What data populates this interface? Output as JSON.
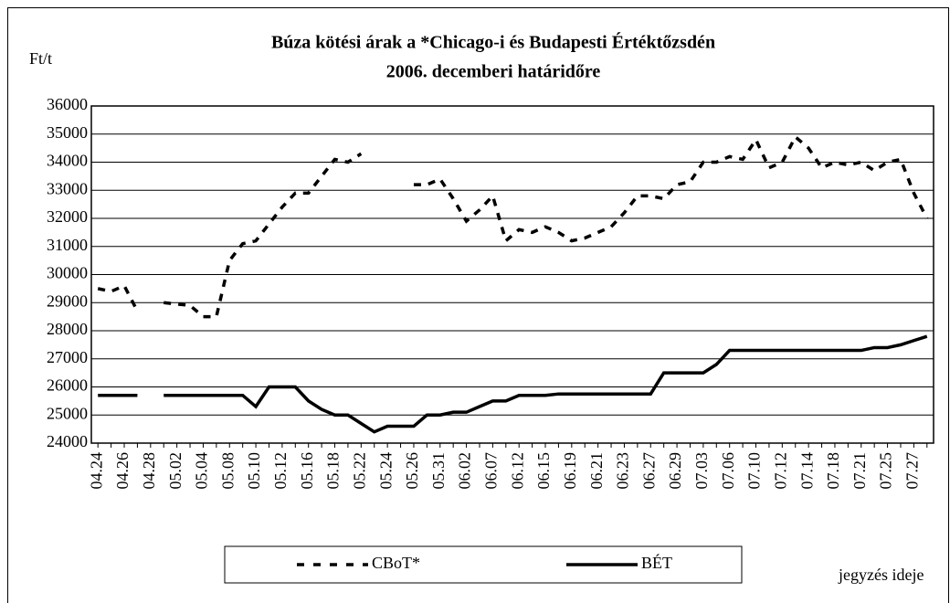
{
  "chart_data": {
    "type": "line",
    "title": "Búza kötési árak a  *Chicago-i és Budapesti Értéktőzsdén",
    "subtitle": "2006. decemberi határidőre",
    "y_label": "Ft/t",
    "x_label": "jegyzés ideje",
    "categories": [
      "04.24",
      null,
      "04.26",
      null,
      "04.28",
      null,
      "05.02",
      null,
      "05.04",
      null,
      "05.08",
      null,
      "05.10",
      null,
      "05.12",
      null,
      "05.16",
      null,
      "05.18",
      null,
      "05.22",
      null,
      "05.24",
      null,
      "05.26",
      null,
      "05.31",
      null,
      "06.02",
      null,
      "06.07",
      null,
      "06.12",
      null,
      "06.15",
      null,
      "06.19",
      null,
      "06.21",
      null,
      "06.23",
      null,
      "06.27",
      null,
      "06.29",
      null,
      "07.03",
      null,
      "07.06",
      null,
      "07.10",
      null,
      "07.12",
      null,
      "07.14",
      null,
      "07.18",
      null,
      "07.21",
      null,
      "07.25",
      null,
      "07.27",
      null
    ],
    "series": [
      {
        "name": "CBoT*",
        "color": "#000000",
        "dashed": true,
        "values": [
          29500,
          29400,
          29600,
          28700,
          null,
          29000,
          28950,
          28900,
          28500,
          28500,
          30500,
          31100,
          31200,
          31800,
          32400,
          32900,
          32900,
          33500,
          34100,
          34000,
          34300,
          null,
          null,
          null,
          33200,
          33200,
          33400,
          32700,
          31900,
          32300,
          32800,
          31200,
          31600,
          31500,
          31700,
          31500,
          31200,
          31300,
          31500,
          31700,
          32200,
          32800,
          32800,
          32700,
          33200,
          33300,
          34000,
          34000,
          34200,
          34100,
          34800,
          33800,
          34000,
          34900,
          34500,
          33800,
          34000,
          33900,
          34000,
          33700,
          34000,
          34100,
          32900,
          32000
        ]
      },
      {
        "name": "BÉT",
        "color": "#000000",
        "dashed": false,
        "values": [
          25700,
          25700,
          25700,
          25700,
          null,
          25700,
          25700,
          25700,
          25700,
          25700,
          25700,
          25700,
          25300,
          26000,
          26000,
          26000,
          25500,
          25200,
          25000,
          25000,
          24700,
          24400,
          24600,
          24600,
          24600,
          25000,
          25000,
          25100,
          25100,
          25300,
          25500,
          25500,
          25700,
          25700,
          25700,
          25750,
          25750,
          25750,
          25750,
          25750,
          25750,
          25750,
          25750,
          26500,
          26500,
          26500,
          26500,
          26800,
          27300,
          27300,
          27300,
          27300,
          27300,
          27300,
          27300,
          27300,
          27300,
          27300,
          27300,
          27400,
          27400,
          27500,
          27650,
          27800
        ]
      }
    ],
    "ylim": [
      24000,
      36000
    ],
    "yticks": [
      24000,
      25000,
      26000,
      27000,
      28000,
      29000,
      30000,
      31000,
      32000,
      33000,
      34000,
      35000,
      36000
    ],
    "grid": true
  }
}
